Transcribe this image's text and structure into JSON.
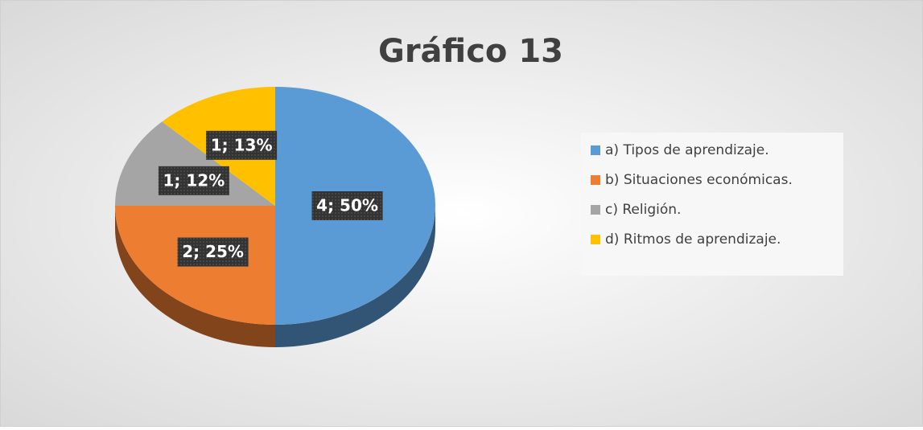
{
  "chart_data": {
    "type": "pie",
    "title": "Gráfico 13",
    "categories": [
      "a) Tipos de aprendizaje.",
      "b) Situaciones económicas.",
      "c) Religión.",
      "d) Ritmos de aprendizaje."
    ],
    "values": [
      4,
      2,
      1,
      1
    ],
    "value_labels": [
      "4; 50%",
      "2; 25%",
      "1; 12%",
      "1; 13%"
    ],
    "colors": [
      "#5b9bd5",
      "#ed7d31",
      "#a5a5a5",
      "#ffc000"
    ],
    "legend": "right"
  }
}
